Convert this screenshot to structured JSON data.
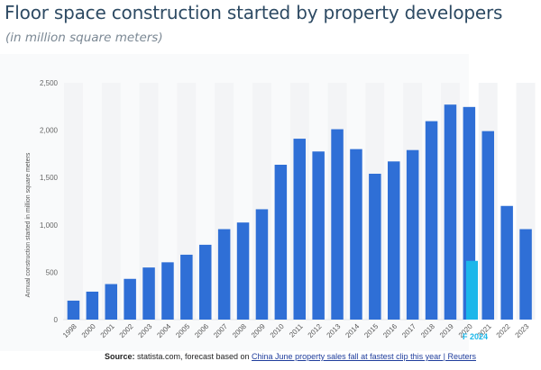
{
  "page": {
    "title": "Floor space construction started by property developers",
    "subtitle": "(in million square meters)"
  },
  "chart_data": {
    "type": "bar",
    "ylabel": "Annual construction started in million square meters",
    "ylim": [
      0,
      2500
    ],
    "yticks": [
      0,
      500,
      1000,
      1500,
      2000,
      2500
    ],
    "ytick_labels": [
      "0",
      "500",
      "1,000",
      "1,500",
      "2,000",
      "2,500"
    ],
    "grid": "vertical alternating bands",
    "categories": [
      "1998",
      "2000",
      "2001",
      "2002",
      "2003",
      "2004",
      "2005",
      "2006",
      "2007",
      "2008",
      "2009",
      "2010",
      "2011",
      "2012",
      "2013",
      "2014",
      "2015",
      "2016",
      "2017",
      "2018",
      "2019",
      "2020",
      "2021",
      "2022",
      "2023"
    ],
    "values": [
      200,
      295,
      375,
      430,
      550,
      605,
      685,
      790,
      955,
      1025,
      1165,
      1635,
      1910,
      1775,
      2010,
      1800,
      1540,
      1670,
      1790,
      2095,
      2270,
      2245,
      1990,
      1200,
      955
    ],
    "colors": {
      "bar": "#2f6fd6",
      "forecast": "#1bb7ea",
      "band": "#f3f4f6"
    },
    "forecast": {
      "label": "F 2024",
      "value": 620
    }
  },
  "source": {
    "label": "Source:",
    "text": " statista.com, forecast based on ",
    "link_text": "China June property sales fall at fastest clip this year | Reuters"
  }
}
